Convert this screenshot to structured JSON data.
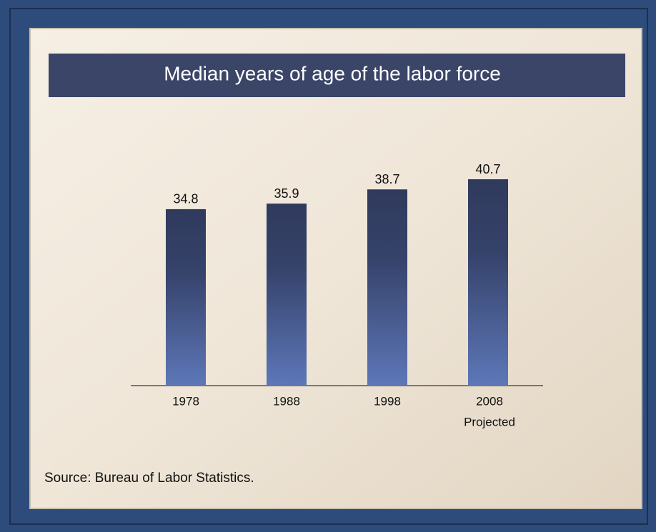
{
  "chart_data": {
    "type": "bar",
    "title": "Median years of age of the labor force",
    "categories": [
      "1978",
      "1988",
      "1998",
      "2008"
    ],
    "values": [
      34.8,
      35.9,
      38.7,
      40.7
    ],
    "color": "#5a72b0",
    "annotation": "Projected",
    "source": "Source: Bureau of Labor Statistics."
  }
}
